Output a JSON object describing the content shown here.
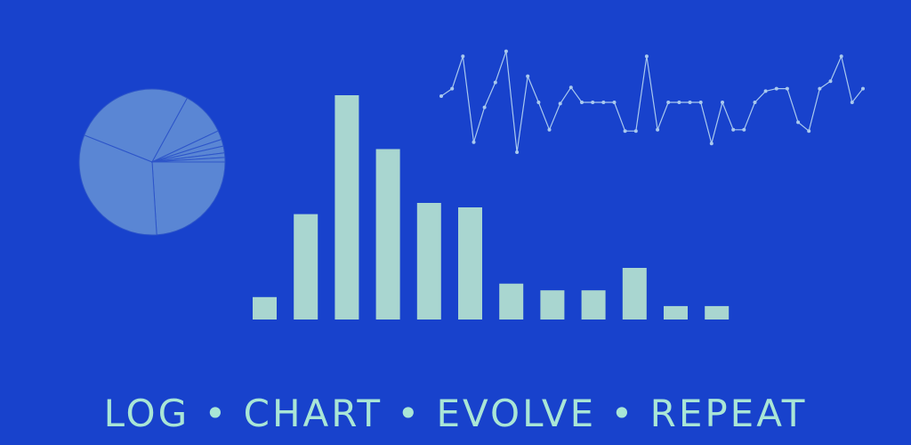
{
  "colors": {
    "background": "#1842CC",
    "bar_fill": "#A9D6D0",
    "line_stroke": "#A9C9EE",
    "pie_fill": "#5A86D4",
    "pie_edge": "#2D55C9",
    "tagline": "#A9E6D6"
  },
  "tagline": "LOG • CHART • EVOLVE • REPEAT",
  "chart_data": [
    {
      "type": "pie",
      "values": [
        24,
        32,
        27,
        10,
        2,
        1.5,
        1.5,
        1,
        1
      ]
    },
    {
      "type": "bar",
      "values": [
        1,
        4.7,
        10,
        7.6,
        5.2,
        5,
        1.6,
        1.3,
        1.3,
        2.3,
        0.6,
        0.6
      ]
    },
    {
      "type": "line",
      "values": [
        6,
        6.6,
        9.2,
        2.3,
        5.1,
        7.1,
        9.6,
        1.5,
        7.6,
        5.5,
        3.3,
        5.4,
        6.7,
        5.5,
        5.5,
        5.5,
        5.5,
        3.2,
        3.2,
        9.2,
        3.3,
        5.5,
        5.5,
        5.5,
        5.5,
        2.2,
        5.5,
        3.3,
        3.3,
        5.5,
        6.4,
        6.6,
        6.6,
        3.9,
        3.2,
        6.6,
        7.2,
        9.2,
        5.5,
        6.6
      ]
    }
  ]
}
